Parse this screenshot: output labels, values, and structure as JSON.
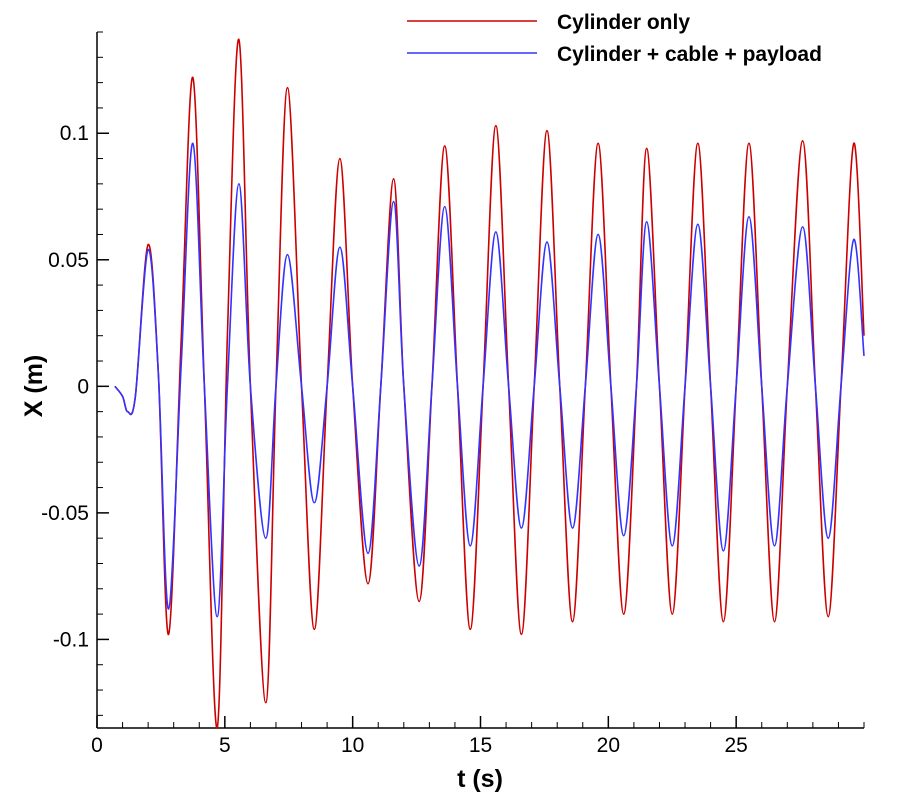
{
  "chart_data": {
    "type": "line",
    "title": "",
    "xlabel": "t (s)",
    "ylabel": "X (m)",
    "xlim": [
      0,
      30
    ],
    "ylim": [
      -0.135,
      0.14
    ],
    "grid": false,
    "legend_position": "top-right",
    "x_major_ticks": [
      0,
      5,
      10,
      15,
      20,
      25
    ],
    "x_tick_labels": [
      "0",
      "5",
      "10",
      "15",
      "20",
      "25"
    ],
    "x_minor_step": 1,
    "y_major_ticks": [
      -0.1,
      -0.05,
      0,
      0.05,
      0.1
    ],
    "y_tick_labels": [
      "-0.1",
      "-0.05",
      "0",
      "0.05",
      "0.1"
    ],
    "y_minor_step": 0.01,
    "series": [
      {
        "name": "Cylinder only",
        "color": "#cc0000",
        "x": [
          0.7,
          1.0,
          1.2,
          1.5,
          2.0,
          2.4,
          2.8,
          3.3,
          3.75,
          4.2,
          4.7,
          5.1,
          5.55,
          6.0,
          6.6,
          7.0,
          7.45,
          8.0,
          8.5,
          9.0,
          9.5,
          10.0,
          10.6,
          11.1,
          11.6,
          12.0,
          12.6,
          13.1,
          13.6,
          14.1,
          14.6,
          15.1,
          15.6,
          16.1,
          16.6,
          17.1,
          17.6,
          18.1,
          18.6,
          19.1,
          19.6,
          20.1,
          20.6,
          21.1,
          21.5,
          22.0,
          22.5,
          23.0,
          23.5,
          24.0,
          24.5,
          25.0,
          25.5,
          26.0,
          26.5,
          27.0,
          27.6,
          28.1,
          28.6,
          29.1,
          29.6,
          30.0
        ],
        "y": [
          0.0,
          -0.004,
          -0.01,
          -0.004,
          0.056,
          0.005,
          -0.098,
          0.02,
          0.122,
          0.0,
          -0.135,
          0.02,
          0.137,
          0.0,
          -0.125,
          0.0,
          0.118,
          0.0,
          -0.096,
          0.0,
          0.09,
          0.0,
          -0.078,
          0.0,
          0.082,
          0.0,
          -0.085,
          0.0,
          0.095,
          0.0,
          -0.096,
          0.0,
          0.103,
          0.0,
          -0.098,
          0.0,
          0.101,
          0.0,
          -0.093,
          0.0,
          0.096,
          0.0,
          -0.09,
          0.0,
          0.094,
          0.0,
          -0.09,
          0.0,
          0.096,
          0.0,
          -0.093,
          0.0,
          0.096,
          0.0,
          -0.093,
          0.0,
          0.097,
          0.0,
          -0.091,
          0.0,
          0.096,
          0.02
        ]
      },
      {
        "name": "Cylinder + cable + payload",
        "color": "#3333ff",
        "x": [
          0.7,
          1.0,
          1.2,
          1.5,
          2.0,
          2.4,
          2.8,
          3.3,
          3.75,
          4.2,
          4.7,
          5.1,
          5.55,
          6.0,
          6.6,
          7.0,
          7.45,
          8.0,
          8.5,
          9.0,
          9.5,
          10.0,
          10.6,
          11.1,
          11.6,
          12.0,
          12.6,
          13.1,
          13.6,
          14.1,
          14.6,
          15.1,
          15.6,
          16.1,
          16.6,
          17.1,
          17.6,
          18.1,
          18.6,
          19.1,
          19.6,
          20.1,
          20.6,
          21.1,
          21.5,
          22.0,
          22.5,
          23.0,
          23.5,
          24.0,
          24.5,
          25.0,
          25.5,
          26.0,
          26.5,
          27.0,
          27.6,
          28.1,
          28.6,
          29.1,
          29.6,
          30.0
        ],
        "y": [
          0.0,
          -0.004,
          -0.01,
          -0.004,
          0.054,
          0.005,
          -0.088,
          0.01,
          0.096,
          0.0,
          -0.091,
          0.0,
          0.08,
          0.0,
          -0.06,
          0.0,
          0.052,
          0.0,
          -0.046,
          0.0,
          0.055,
          0.0,
          -0.066,
          0.0,
          0.073,
          0.0,
          -0.071,
          0.0,
          0.071,
          0.0,
          -0.063,
          0.0,
          0.061,
          0.0,
          -0.056,
          0.0,
          0.057,
          0.0,
          -0.056,
          0.0,
          0.06,
          0.0,
          -0.059,
          0.0,
          0.065,
          0.0,
          -0.063,
          0.0,
          0.064,
          0.0,
          -0.065,
          0.0,
          0.067,
          0.0,
          -0.063,
          0.0,
          0.063,
          0.0,
          -0.06,
          0.0,
          0.058,
          0.012
        ]
      }
    ]
  }
}
